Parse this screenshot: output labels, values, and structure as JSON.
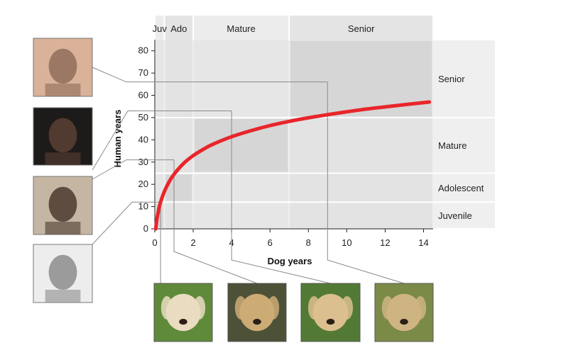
{
  "chart_data": {
    "type": "line",
    "xlabel": "Dog years",
    "ylabel": "Human years",
    "xlim": [
      0,
      14.5
    ],
    "ylim": [
      0,
      85
    ],
    "xticks": [
      0,
      2,
      4,
      6,
      8,
      10,
      12,
      14
    ],
    "yticks": [
      0,
      10,
      20,
      30,
      40,
      50,
      60,
      70,
      80
    ],
    "grid": false,
    "curve_color": "#e8262b",
    "series": [
      {
        "x": [
          0.05,
          0.1,
          0.2,
          0.3,
          0.5,
          0.75,
          1,
          1.5,
          2,
          2.5,
          3,
          4,
          5,
          6,
          7,
          8,
          9,
          10,
          11,
          12,
          13,
          14.3
        ],
        "y": [
          0,
          3.8,
          8.5,
          12,
          16.8,
          21.2,
          24.5,
          29.4,
          32.9,
          35.6,
          37.9,
          41.4,
          44.1,
          46.4,
          48.3,
          49.9,
          51.3,
          52.6,
          53.8,
          54.8,
          55.8,
          57.0
        ]
      }
    ],
    "dog_stages": [
      {
        "label": "Juv",
        "x_range": [
          0,
          0.5
        ]
      },
      {
        "label": "Ado",
        "x_range": [
          0.5,
          2
        ]
      },
      {
        "label": "Mature",
        "x_range": [
          2,
          7
        ]
      },
      {
        "label": "Senior",
        "x_range": [
          7,
          14.5
        ]
      }
    ],
    "human_stages": [
      {
        "label": "Senior",
        "y_range": [
          50,
          85
        ]
      },
      {
        "label": "Mature",
        "y_range": [
          25,
          50
        ]
      },
      {
        "label": "Adolescent",
        "y_range": [
          12,
          25
        ]
      },
      {
        "label": "Juvenile",
        "y_range": [
          0,
          12
        ]
      }
    ],
    "highlight_boxes": [
      {
        "x_range": [
          0,
          0.5
        ],
        "y_range": [
          0,
          12
        ]
      },
      {
        "x_range": [
          0.5,
          2
        ],
        "y_range": [
          12,
          25
        ]
      },
      {
        "x_range": [
          2,
          7
        ],
        "y_range": [
          25,
          50
        ]
      },
      {
        "x_range": [
          7,
          14.5
        ],
        "y_range": [
          50,
          85
        ]
      }
    ],
    "callouts": [
      {
        "dog_years": 0.3,
        "human_years": 12,
        "person": "child photo",
        "dog": "puppy photo"
      },
      {
        "dog_years": 1,
        "human_years": 31,
        "person": "teen photo",
        "dog": "young dog photo"
      },
      {
        "dog_years": 4,
        "human_years": 53,
        "person": "adult photo",
        "dog": "adult dog photo"
      },
      {
        "dog_years": 9,
        "human_years": 66,
        "person": "older adult photo",
        "dog": "senior dog photo"
      }
    ],
    "person_photos": [
      "older-man",
      "adult-man",
      "teenager",
      "child"
    ],
    "dog_photos": [
      "puppy",
      "young-dog",
      "adult-dog",
      "senior-dog"
    ]
  }
}
